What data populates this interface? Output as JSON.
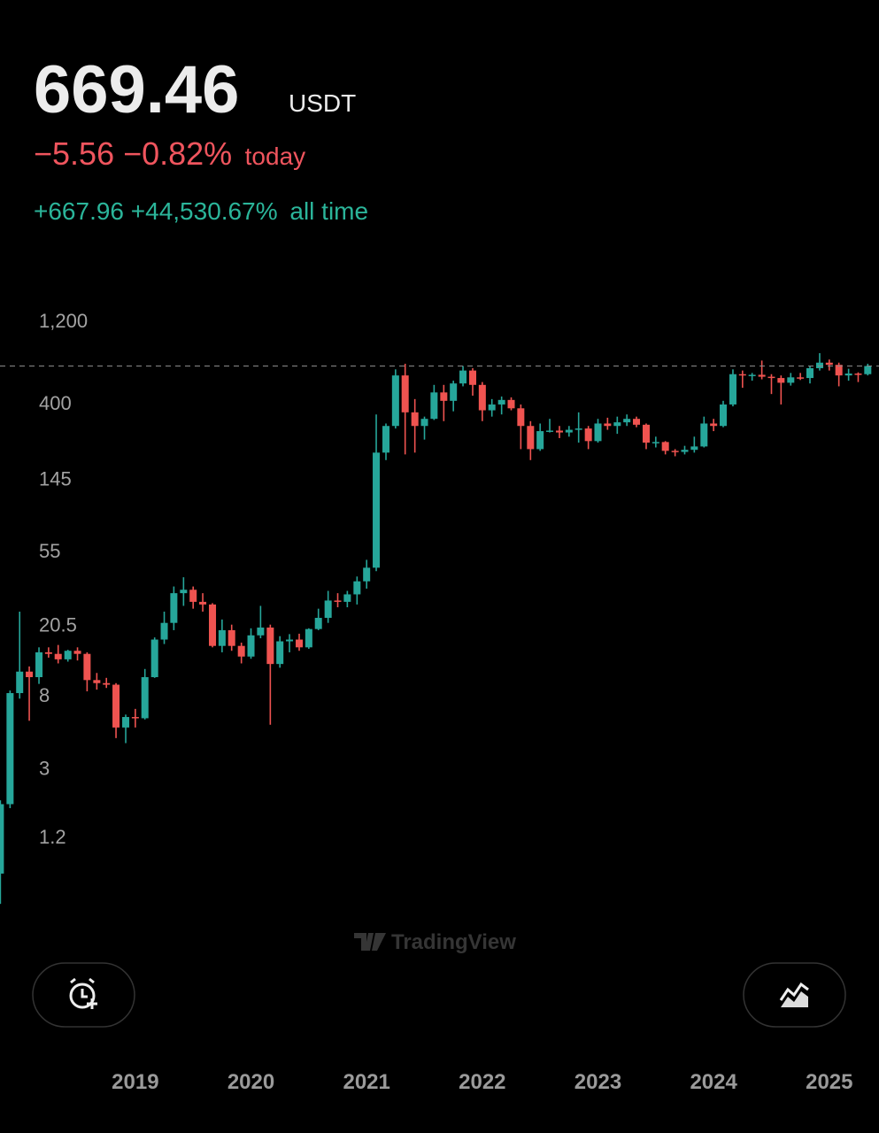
{
  "header": {
    "price": "669.46",
    "currency": "USDT",
    "change_today": "−5.56 −0.82%",
    "today_label": "today",
    "change_all_time": "+667.96 +44,530.67%",
    "all_time_label": "all time"
  },
  "watermark": "TradingView",
  "chart_data": {
    "type": "candlestick",
    "log_scale": true,
    "price_line": true,
    "up_color": "#26a69a",
    "down_color": "#ef5350",
    "xlim": [
      2017.83,
      2025.43
    ],
    "xticks": [
      2019,
      2020,
      2021,
      2022,
      2023,
      2024,
      2025
    ],
    "ylim": [
      0.4,
      1800
    ],
    "yticks": [
      {
        "value": 1200,
        "label": "1,200"
      },
      400,
      145,
      55,
      20.5,
      8,
      3,
      1.2
    ],
    "x": [
      2017.833,
      2017.917,
      2018.0,
      2018.083,
      2018.167,
      2018.25,
      2018.333,
      2018.417,
      2018.5,
      2018.583,
      2018.667,
      2018.75,
      2018.833,
      2018.917,
      2019.0,
      2019.083,
      2019.167,
      2019.25,
      2019.333,
      2019.417,
      2019.5,
      2019.583,
      2019.667,
      2019.75,
      2019.833,
      2019.917,
      2020.0,
      2020.083,
      2020.167,
      2020.25,
      2020.333,
      2020.417,
      2020.5,
      2020.583,
      2020.667,
      2020.75,
      2020.833,
      2020.917,
      2021.0,
      2021.083,
      2021.167,
      2021.25,
      2021.333,
      2021.417,
      2021.5,
      2021.583,
      2021.667,
      2021.75,
      2021.833,
      2021.917,
      2022.0,
      2022.083,
      2022.167,
      2022.25,
      2022.333,
      2022.417,
      2022.5,
      2022.583,
      2022.667,
      2022.75,
      2022.833,
      2022.917,
      2023.0,
      2023.083,
      2023.167,
      2023.25,
      2023.333,
      2023.417,
      2023.5,
      2023.583,
      2023.667,
      2023.75,
      2023.833,
      2023.917,
      2024.0,
      2024.083,
      2024.167,
      2024.25,
      2024.333,
      2024.417,
      2024.5,
      2024.583,
      2024.667,
      2024.75,
      2024.833,
      2024.917,
      2025.0,
      2025.083,
      2025.167,
      2025.25,
      2025.333
    ],
    "open": [
      0.75,
      1.9,
      8.4,
      11.2,
      10.4,
      14.5,
      14.2,
      13.2,
      14.8,
      14.2,
      10,
      9.6,
      9.4,
      5.3,
      6.1,
      6.0,
      10.4,
      17.2,
      21.5,
      32,
      33.5,
      28.5,
      27.5,
      15.8,
      19.5,
      15.8,
      13.7,
      18.2,
      20.2,
      12.4,
      16.8,
      17.2,
      15.5,
      19.8,
      23,
      29,
      28.5,
      31.5,
      37.5,
      45,
      210,
      300,
      590,
      360,
      300,
      330,
      470,
      420,
      530,
      630,
      520,
      370,
      400,
      425,
      380,
      300,
      220,
      280,
      282,
      275,
      285,
      290,
      245,
      310,
      300,
      315,
      330,
      305,
      240,
      242,
      215,
      212,
      218,
      228,
      310,
      300,
      400,
      600,
      590,
      595,
      580,
      570,
      535,
      575,
      570,
      650,
      700,
      680,
      590,
      605,
      600
    ],
    "high": [
      2.0,
      8.7,
      25,
      12,
      15.5,
      15.5,
      16,
      15,
      15.5,
      14.5,
      11,
      10.3,
      9.6,
      6.3,
      6.8,
      11.6,
      17.7,
      25,
      35,
      39.6,
      35,
      32,
      28,
      22.5,
      21,
      16.5,
      20,
      27,
      21,
      18,
      18.5,
      18.6,
      20,
      26,
      33,
      32,
      33,
      40,
      50,
      350,
      310,
      640,
      690,
      430,
      340,
      520,
      520,
      550,
      670,
      650,
      540,
      430,
      445,
      440,
      400,
      320,
      310,
      330,
      300,
      300,
      360,
      300,
      330,
      335,
      340,
      350,
      340,
      310,
      260,
      245,
      220,
      230,
      260,
      340,
      330,
      420,
      640,
      630,
      610,
      720,
      600,
      590,
      610,
      610,
      670,
      795,
      730,
      700,
      645,
      615,
      690
    ],
    "low": [
      0.5,
      1.8,
      7.8,
      5.8,
      9.5,
      13.5,
      12.5,
      12.8,
      13,
      8.6,
      8.8,
      9,
      4.6,
      4.3,
      5.3,
      5.9,
      10.3,
      16.2,
      19.5,
      27,
      26,
      25,
      15.5,
      14.5,
      14.8,
      12.5,
      13.3,
      17.5,
      5.5,
      11.8,
      14.5,
      14.8,
      15.2,
      19.5,
      21.5,
      26.5,
      26.5,
      27.5,
      34,
      43,
      190,
      290,
      205,
      210,
      250,
      325,
      320,
      365,
      510,
      450,
      320,
      340,
      350,
      370,
      220,
      190,
      215,
      275,
      255,
      260,
      240,
      220,
      240,
      285,
      270,
      300,
      295,
      220,
      225,
      205,
      200,
      205,
      210,
      225,
      280,
      295,
      390,
      500,
      550,
      560,
      460,
      400,
      515,
      555,
      530,
      630,
      630,
      510,
      550,
      540,
      590
    ],
    "close": [
      1.9,
      8.4,
      11.2,
      10.4,
      14.5,
      14.2,
      13.2,
      14.8,
      14.2,
      10.0,
      9.6,
      9.4,
      5.3,
      6.1,
      6.0,
      10.4,
      17.2,
      21.5,
      32,
      33.5,
      28.5,
      27.5,
      15.8,
      19.5,
      15.8,
      13.7,
      18.2,
      20.2,
      12.4,
      16.8,
      17.2,
      15.5,
      19.8,
      23,
      29,
      28.5,
      31.5,
      37.5,
      45,
      210,
      300,
      590,
      360,
      300,
      330,
      470,
      420,
      530,
      630,
      520,
      370,
      400,
      425,
      380,
      300,
      220,
      280,
      282,
      275,
      285,
      290,
      245,
      310,
      300,
      315,
      330,
      305,
      240,
      242,
      215,
      212,
      218,
      228,
      310,
      300,
      400,
      600,
      590,
      595,
      580,
      570,
      535,
      575,
      570,
      650,
      700,
      680,
      590,
      605,
      600,
      669.46
    ]
  }
}
